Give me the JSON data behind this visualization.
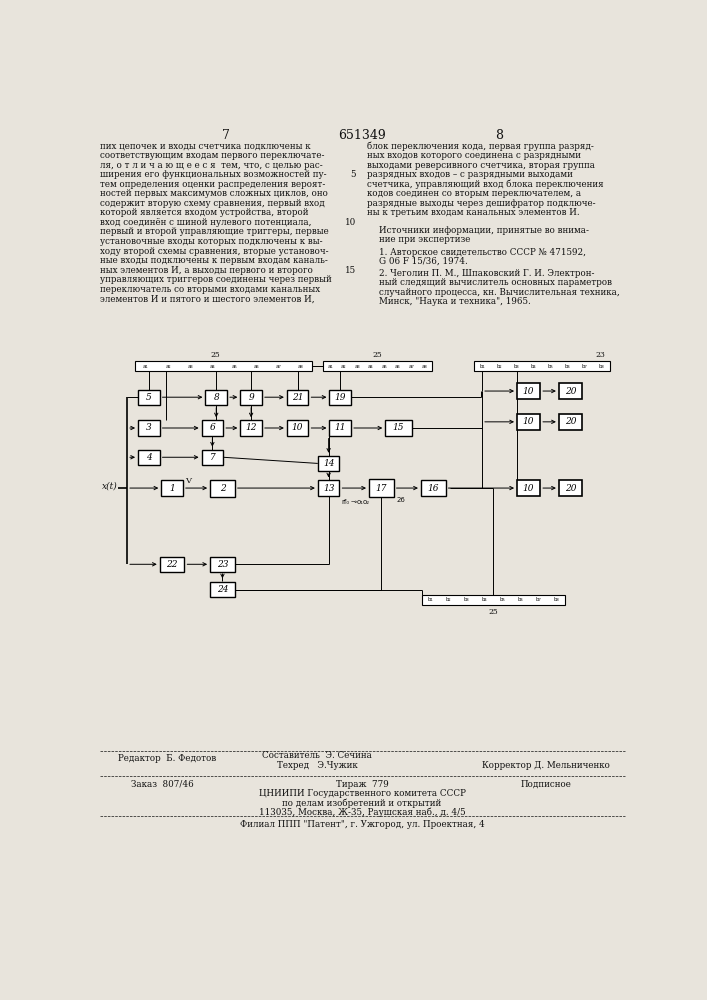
{
  "page_number_left": "7",
  "patent_number": "651349",
  "page_number_right": "8",
  "bg_color": "#e8e4dc",
  "text_color": "#111111",
  "left_text_lines": [
    "пих цепочек и входы счетчика подключены к",
    "соответствующим входам первого переключате-",
    "ля, о т л и ч а ю щ е е с я  тем, что, с целью рас-",
    "ширения его функциональных возможностей пу-",
    "тем определения оценки распределения вероят-",
    "ностей первых максимумов сложных циклов, оно",
    "содержит вторую схему сравнения, первый вход",
    "которой является входом устройства, второй",
    "вход соединён с шиной нулевого потенциала,",
    "первый и второй управляющие триггеры, первые",
    "установочные входы которых подключены к вы-",
    "ходу второй схемы сравнения, вторые установоч-",
    "ные входы подключены к первым входам каналь-",
    "ных элементов И, а выходы первого и второго",
    "управляющих триггеров соединены через первый",
    "переключатель со вторыми входами канальных",
    "элементов И и пятого и шестого элементов И,"
  ],
  "right_text_lines": [
    "блок переключения кода, первая группа разряд-",
    "ных входов которого соединена с разрядными",
    "выходами реверсивного счетчика, вторая группа",
    "разрядных входов – с разрядными выходами",
    "счетчика, управляющий вход блока переключения",
    "кодов соединен со вторым переключателем, а",
    "разрядные выходы через дешифратор подключе-",
    "ны к третьим входам канальных элементов И."
  ],
  "sources_header": "Источники информации, принятые во внима-",
  "sources_header2": "ние при экспертизе",
  "source1": "1. Авторское свидетельство СССР № 471592,",
  "source1b": "G 06 F 15/36, 1974.",
  "source2": "2. Чеголин П. М., Шпаковский Г. И. Электрон-",
  "source2b": "ный следящий вычислитель основных параметров",
  "source2c": "случайного процесса, кн. Вычислительная техника,",
  "source2d": "Минск, \"Наука и техника\", 1965.",
  "footer_editor": "Редактор  Б. Федотов",
  "footer_composer": "Составитель  Э. Сечина",
  "footer_techred": "Техред   Э.Чужик",
  "footer_corrector": "Корректор Д. Мельниченко",
  "footer_order": "Заказ  807/46",
  "footer_edition": "Тираж  779",
  "footer_signed": "Подписное",
  "footer_org1": "ЦНИИПИ Государственного комитета СССР",
  "footer_org2": "по делам изобретений и открытий",
  "footer_org3": "113035, Москва, Ж-35, Раушская наб., д. 4/5",
  "footer_branch": "Филиал ППП \"Патент\", г. Ужгород, ул. Проектная, 4"
}
